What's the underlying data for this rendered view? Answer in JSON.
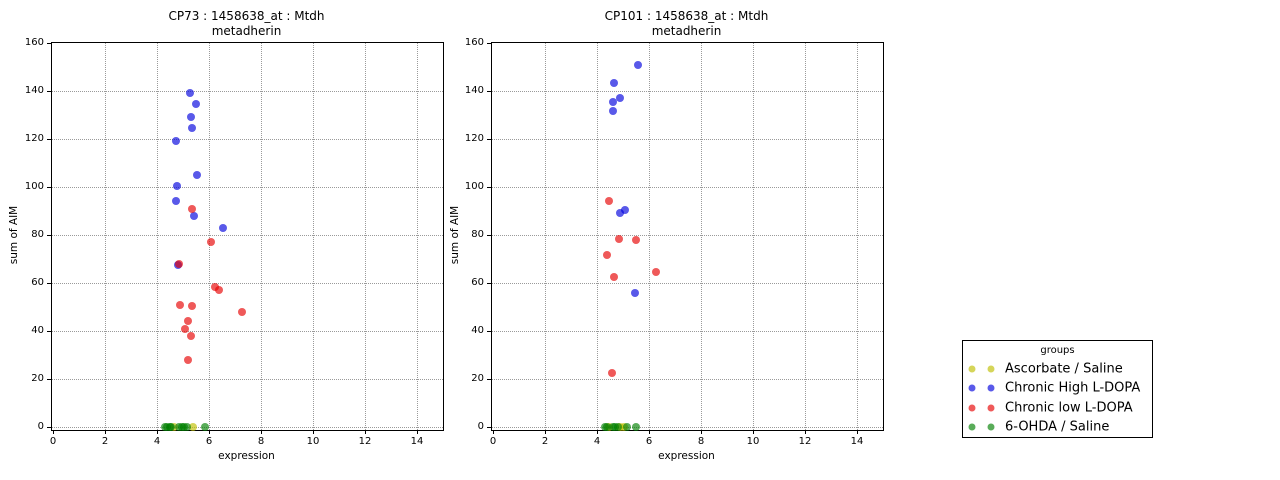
{
  "figure": {
    "background": "#ffffff"
  },
  "colors": {
    "yellow": "#bfbf00",
    "blue": "#0000dd",
    "red": "#e60000",
    "green": "#008000",
    "axis": "#000000",
    "grid": "#9a9a9a"
  },
  "legend": {
    "title": "groups",
    "entries": [
      {
        "label": "Ascorbate / Saline",
        "color": "yellow"
      },
      {
        "label": "Chronic High L-DOPA",
        "color": "blue"
      },
      {
        "label": "Chronic low L-DOPA",
        "color": "red"
      },
      {
        "label": "6-OHDA / Saline",
        "color": "green"
      }
    ]
  },
  "chart_data": [
    {
      "type": "scatter",
      "title": "CP73 : 1458638_at : Mtdh",
      "subtitle": "metadherin",
      "xlabel": "expression",
      "ylabel": "sum of AIM",
      "xlim": [
        0,
        15
      ],
      "ylim": [
        0,
        160
      ],
      "xticks": [
        0,
        2,
        4,
        6,
        8,
        10,
        12,
        14
      ],
      "yticks": [
        0,
        20,
        40,
        60,
        80,
        100,
        120,
        140,
        160
      ],
      "grid": true,
      "series": [
        {
          "name": "Ascorbate / Saline",
          "color": "yellow",
          "points": [
            [
              4.67,
              0
            ],
            [
              5.37,
              0
            ]
          ]
        },
        {
          "name": "Chronic High L-DOPA",
          "color": "blue",
          "points": [
            [
              5.27,
              139
            ],
            [
              5.49,
              134.5
            ],
            [
              5.32,
              129
            ],
            [
              5.35,
              124.5
            ],
            [
              4.72,
              119
            ],
            [
              5.53,
              105
            ],
            [
              4.78,
              100.5
            ],
            [
              4.73,
              94
            ],
            [
              5.42,
              88
            ],
            [
              6.54,
              83
            ],
            [
              4.8,
              67.5
            ]
          ]
        },
        {
          "name": "Chronic low L-DOPA",
          "color": "red",
          "points": [
            [
              5.33,
              91
            ],
            [
              6.08,
              77
            ],
            [
              4.85,
              68
            ],
            [
              6.23,
              58.5
            ],
            [
              6.4,
              57
            ],
            [
              4.9,
              51
            ],
            [
              5.33,
              50.5
            ],
            [
              7.27,
              48
            ],
            [
              5.19,
              44
            ],
            [
              5.06,
              41
            ],
            [
              5.3,
              38
            ],
            [
              5.18,
              28
            ]
          ]
        },
        {
          "name": "6-OHDA / Saline",
          "color": "green",
          "points": [
            [
              4.3,
              0
            ],
            [
              4.4,
              0
            ],
            [
              4.5,
              0
            ],
            [
              4.55,
              0
            ],
            [
              4.85,
              0
            ],
            [
              4.95,
              0
            ],
            [
              5.05,
              0
            ],
            [
              5.15,
              0
            ],
            [
              5.85,
              0
            ]
          ]
        }
      ]
    },
    {
      "type": "scatter",
      "title": "CP101 : 1458638_at : Mtdh",
      "subtitle": "metadherin",
      "xlabel": "expression",
      "ylabel": "sum of AIM",
      "xlim": [
        0,
        15
      ],
      "ylim": [
        0,
        160
      ],
      "xticks": [
        0,
        2,
        4,
        6,
        8,
        10,
        12,
        14
      ],
      "yticks": [
        0,
        20,
        40,
        60,
        80,
        100,
        120,
        140,
        160
      ],
      "grid": true,
      "series": [
        {
          "name": "Ascorbate / Saline",
          "color": "yellow",
          "points": [
            [
              4.45,
              0
            ],
            [
              4.9,
              0
            ],
            [
              5.05,
              0
            ]
          ]
        },
        {
          "name": "Chronic High L-DOPA",
          "color": "blue",
          "points": [
            [
              5.56,
              151
            ],
            [
              4.65,
              143.5
            ],
            [
              4.9,
              137
            ],
            [
              4.6,
              135.5
            ],
            [
              4.6,
              131.5
            ],
            [
              5.08,
              90.5
            ],
            [
              4.9,
              89
            ],
            [
              5.45,
              56
            ]
          ]
        },
        {
          "name": "Chronic low L-DOPA",
          "color": "red",
          "points": [
            [
              4.45,
              94
            ],
            [
              4.85,
              78.5
            ],
            [
              5.5,
              78
            ],
            [
              4.4,
              71.5
            ],
            [
              6.25,
              64.5
            ],
            [
              4.67,
              62.5
            ],
            [
              4.56,
              22.5
            ]
          ]
        },
        {
          "name": "6-OHDA / Saline",
          "color": "green",
          "points": [
            [
              4.3,
              0
            ],
            [
              4.4,
              0
            ],
            [
              4.6,
              0
            ],
            [
              4.7,
              0
            ],
            [
              4.8,
              0
            ],
            [
              5.15,
              0
            ],
            [
              5.5,
              0
            ]
          ]
        }
      ]
    }
  ]
}
